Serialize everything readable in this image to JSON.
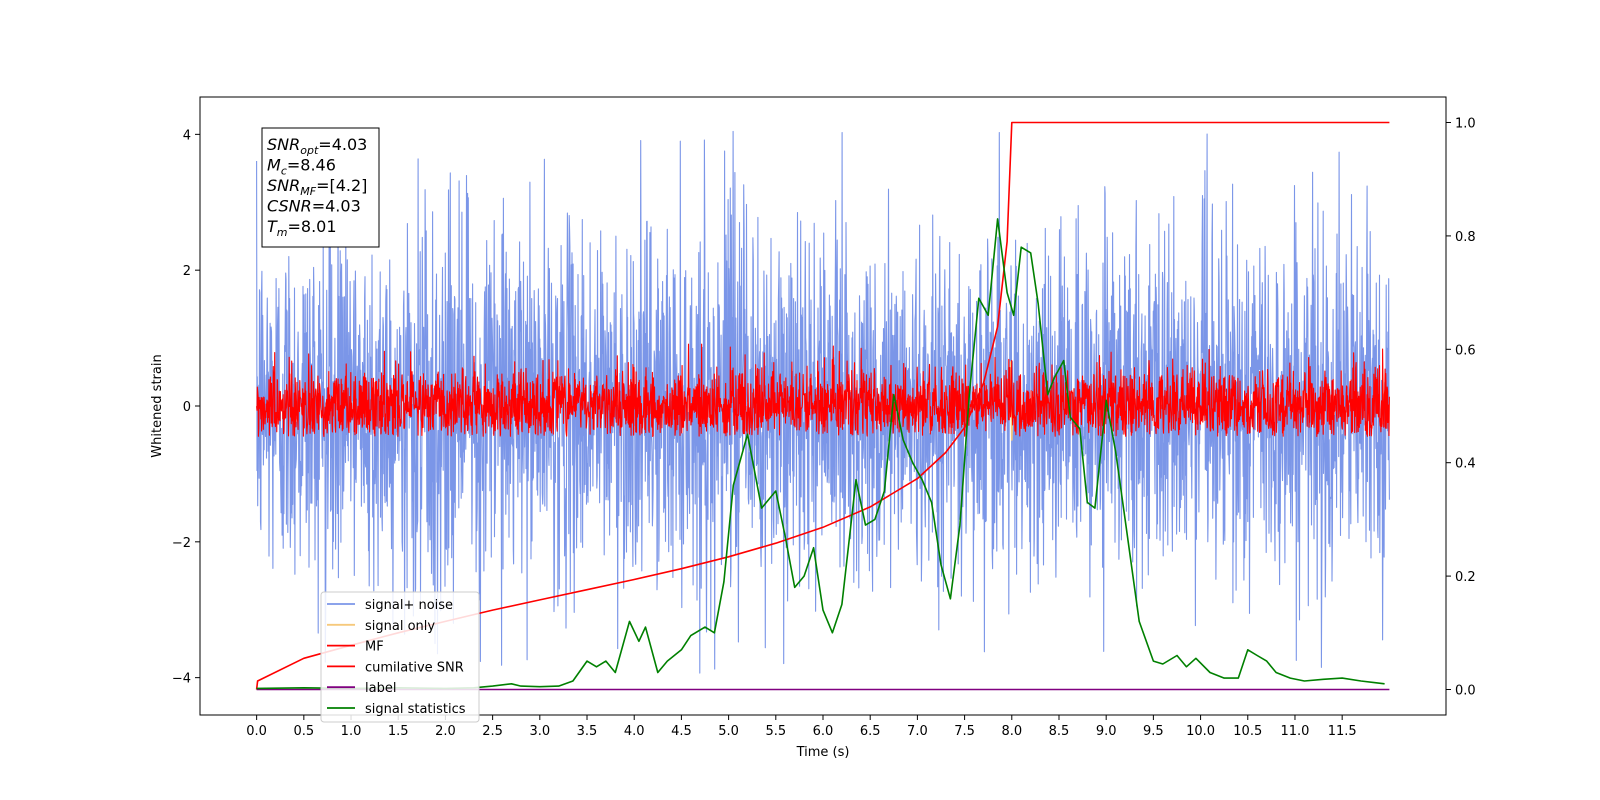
{
  "chart_data": {
    "type": "line",
    "xlabel": "Time (s)",
    "ylabel": "Whitened strain",
    "xlim": [
      -0.6,
      12.6
    ],
    "ylim": [
      -4.55,
      4.55
    ],
    "ylim_right": [
      -0.045,
      1.045
    ],
    "xticks": [
      0.0,
      0.5,
      1.0,
      1.5,
      2.0,
      2.5,
      3.0,
      3.5,
      4.0,
      4.5,
      5.0,
      5.5,
      6.0,
      6.5,
      7.0,
      7.5,
      8.0,
      8.5,
      9.0,
      9.5,
      10.0,
      10.5,
      11.0,
      11.5
    ],
    "xtick_labels": [
      "0.0",
      "0.5",
      "1.0",
      "1.5",
      "2.0",
      "2.5",
      "3.0",
      "3.5",
      "4.0",
      "4.5",
      "5.0",
      "5.5",
      "6.0",
      "6.5",
      "7.0",
      "7.5",
      "8.0",
      "8.5",
      "9.0",
      "9.5",
      "10.0",
      "10.5",
      "11.0",
      "11.5"
    ],
    "yticks": [
      -4,
      -2,
      0,
      2,
      4
    ],
    "ytick_labels": [
      "−4",
      "−2",
      "0",
      "2",
      "4"
    ],
    "yticks_right": [
      0.0,
      0.2,
      0.4,
      0.6,
      0.8,
      1.0
    ],
    "ytick_right_labels": [
      "0.0",
      "0.2",
      "0.4",
      "0.6",
      "0.8",
      "1.0"
    ],
    "legend_position": "lower-left",
    "grid": false,
    "annotation": {
      "lines": [
        {
          "sym": "SNR",
          "sub": "opt",
          "value": "=4.03"
        },
        {
          "sym": "M",
          "sub": "c",
          "value": "=8.46"
        },
        {
          "sym": "SNR",
          "sub": "MF",
          "value": "=[4.2]"
        },
        {
          "sym": "CSNR",
          "sub": "",
          "value": "=4.03"
        },
        {
          "sym": "T",
          "sub": "m",
          "value": "=8.01"
        }
      ]
    },
    "series": [
      {
        "name": "signal+ noise",
        "color": "#7b96e8",
        "axis": "left",
        "kind": "noise",
        "x_range": [
          0.0,
          12.0
        ],
        "amplitude_envelope": {
          "mean": 0.0,
          "std": 1.3,
          "max": 4.15,
          "min": -3.95
        }
      },
      {
        "name": "signal only",
        "color": "#f6c97c",
        "axis": "left",
        "kind": "burst",
        "points": [
          [
            7.98,
            0.0
          ],
          [
            7.99,
            0.65
          ],
          [
            8.0,
            -0.5
          ],
          [
            8.01,
            0.0
          ]
        ]
      },
      {
        "name": "MF",
        "color": "#ff0000",
        "axis": "left",
        "kind": "noise",
        "x_range": [
          0.0,
          12.0
        ],
        "amplitude_envelope": {
          "mean": 0.0,
          "std": 0.28,
          "max": 0.95,
          "min": -0.45
        }
      },
      {
        "name": "cumilative SNR",
        "color": "#ff0000",
        "axis": "right",
        "kind": "line",
        "points": [
          [
            0.0,
            0.0
          ],
          [
            0.01,
            0.015
          ],
          [
            0.5,
            0.055
          ],
          [
            1.0,
            0.078
          ],
          [
            1.5,
            0.1
          ],
          [
            2.0,
            0.12
          ],
          [
            2.5,
            0.14
          ],
          [
            3.0,
            0.158
          ],
          [
            3.5,
            0.176
          ],
          [
            4.0,
            0.194
          ],
          [
            4.5,
            0.213
          ],
          [
            5.0,
            0.234
          ],
          [
            5.5,
            0.258
          ],
          [
            6.0,
            0.286
          ],
          [
            6.5,
            0.322
          ],
          [
            7.0,
            0.372
          ],
          [
            7.3,
            0.418
          ],
          [
            7.5,
            0.462
          ],
          [
            7.7,
            0.54
          ],
          [
            7.85,
            0.64
          ],
          [
            7.95,
            0.79
          ],
          [
            8.0,
            1.0
          ],
          [
            12.0,
            1.0
          ]
        ]
      },
      {
        "name": "label",
        "color": "#800080",
        "axis": "right",
        "kind": "line",
        "points": [
          [
            0.0,
            0.0
          ],
          [
            12.0,
            0.0
          ]
        ]
      },
      {
        "name": "signal statistics",
        "color": "#008000",
        "axis": "right",
        "kind": "line",
        "points": [
          [
            0.0,
            0.002
          ],
          [
            0.5,
            0.003
          ],
          [
            1.0,
            0.002
          ],
          [
            1.5,
            0.003
          ],
          [
            2.0,
            0.002
          ],
          [
            2.3,
            0.003
          ],
          [
            2.5,
            0.006
          ],
          [
            2.7,
            0.01
          ],
          [
            2.8,
            0.006
          ],
          [
            3.0,
            0.005
          ],
          [
            3.2,
            0.006
          ],
          [
            3.35,
            0.015
          ],
          [
            3.5,
            0.05
          ],
          [
            3.6,
            0.04
          ],
          [
            3.7,
            0.05
          ],
          [
            3.8,
            0.03
          ],
          [
            3.95,
            0.12
          ],
          [
            4.05,
            0.085
          ],
          [
            4.12,
            0.11
          ],
          [
            4.25,
            0.03
          ],
          [
            4.35,
            0.05
          ],
          [
            4.5,
            0.07
          ],
          [
            4.6,
            0.095
          ],
          [
            4.75,
            0.11
          ],
          [
            4.85,
            0.1
          ],
          [
            4.95,
            0.19
          ],
          [
            5.05,
            0.36
          ],
          [
            5.2,
            0.45
          ],
          [
            5.35,
            0.32
          ],
          [
            5.5,
            0.35
          ],
          [
            5.6,
            0.27
          ],
          [
            5.7,
            0.18
          ],
          [
            5.8,
            0.2
          ],
          [
            5.9,
            0.25
          ],
          [
            6.0,
            0.14
          ],
          [
            6.1,
            0.1
          ],
          [
            6.2,
            0.15
          ],
          [
            6.35,
            0.37
          ],
          [
            6.45,
            0.29
          ],
          [
            6.55,
            0.3
          ],
          [
            6.65,
            0.35
          ],
          [
            6.75,
            0.52
          ],
          [
            6.85,
            0.44
          ],
          [
            6.95,
            0.4
          ],
          [
            7.05,
            0.37
          ],
          [
            7.15,
            0.33
          ],
          [
            7.25,
            0.22
          ],
          [
            7.35,
            0.16
          ],
          [
            7.45,
            0.29
          ],
          [
            7.55,
            0.52
          ],
          [
            7.65,
            0.69
          ],
          [
            7.75,
            0.66
          ],
          [
            7.85,
            0.83
          ],
          [
            7.95,
            0.7
          ],
          [
            8.02,
            0.66
          ],
          [
            8.1,
            0.78
          ],
          [
            8.2,
            0.77
          ],
          [
            8.28,
            0.68
          ],
          [
            8.38,
            0.52
          ],
          [
            8.45,
            0.55
          ],
          [
            8.55,
            0.58
          ],
          [
            8.62,
            0.48
          ],
          [
            8.72,
            0.46
          ],
          [
            8.8,
            0.33
          ],
          [
            8.88,
            0.32
          ],
          [
            9.0,
            0.51
          ],
          [
            9.1,
            0.42
          ],
          [
            9.2,
            0.3
          ],
          [
            9.35,
            0.12
          ],
          [
            9.5,
            0.05
          ],
          [
            9.6,
            0.045
          ],
          [
            9.75,
            0.06
          ],
          [
            9.85,
            0.04
          ],
          [
            9.95,
            0.055
          ],
          [
            10.1,
            0.03
          ],
          [
            10.25,
            0.02
          ],
          [
            10.4,
            0.02
          ],
          [
            10.5,
            0.07
          ],
          [
            10.6,
            0.06
          ],
          [
            10.7,
            0.05
          ],
          [
            10.8,
            0.03
          ],
          [
            10.95,
            0.02
          ],
          [
            11.1,
            0.015
          ],
          [
            11.3,
            0.018
          ],
          [
            11.5,
            0.02
          ],
          [
            11.7,
            0.015
          ],
          [
            11.85,
            0.012
          ],
          [
            11.95,
            0.01
          ]
        ]
      }
    ]
  }
}
